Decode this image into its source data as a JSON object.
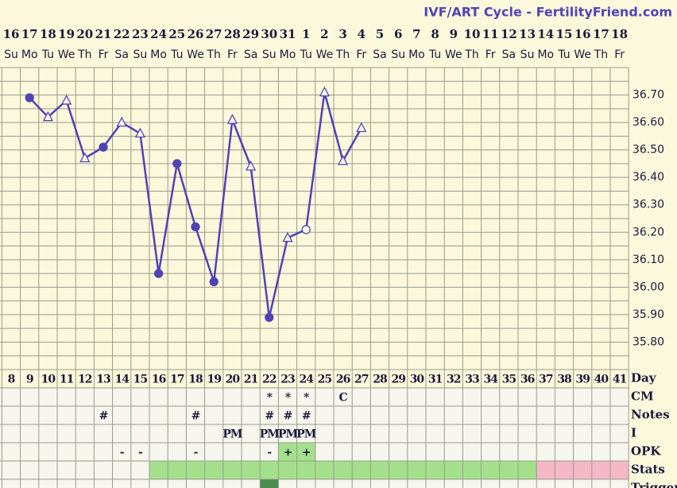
{
  "chart_data": {
    "type": "line",
    "title": "IVF/ART Cycle - FertilityFriend.com",
    "categories": [
      16,
      17,
      18,
      19,
      20,
      21,
      22,
      23,
      24,
      25,
      26,
      27,
      28,
      29,
      30,
      31,
      1,
      2,
      3,
      4,
      5,
      6,
      7,
      8,
      9,
      10,
      11,
      12,
      13,
      14,
      15,
      16,
      17,
      18
    ],
    "weekdays": [
      "Su",
      "Mo",
      "Tu",
      "We",
      "Th",
      "Fr",
      "Sa",
      "Su",
      "Mo",
      "Tu",
      "We",
      "Th",
      "Fr",
      "Sa",
      "Su",
      "Mo",
      "Tu",
      "We",
      "Th",
      "Fr",
      "Sa",
      "Su",
      "Mo",
      "Tu",
      "We",
      "Th",
      "Fr",
      "Sa",
      "Su",
      "Mo",
      "Tu",
      "We",
      "Th",
      "Fr"
    ],
    "series": [
      {
        "name": "Temperature",
        "color": "#4f43b5",
        "values": [
          null,
          36.69,
          36.62,
          36.68,
          36.47,
          36.51,
          36.6,
          36.56,
          36.05,
          36.45,
          36.22,
          36.02,
          36.61,
          36.44,
          35.89,
          36.18,
          36.21,
          36.71,
          36.46,
          36.58,
          null,
          null,
          null,
          null,
          null,
          null,
          null,
          null,
          null,
          null,
          null,
          null,
          null,
          null
        ],
        "markers": [
          null,
          "circle",
          "triangle",
          "triangle",
          "triangle",
          "circle",
          "triangle",
          "triangle",
          "circle",
          "circle",
          "circle",
          "circle",
          "triangle",
          "triangle",
          "circle",
          "triangle",
          "open-circle",
          "triangle",
          "triangle",
          "triangle",
          null,
          null,
          null,
          null,
          null,
          null,
          null,
          null,
          null,
          null,
          null,
          null,
          null,
          null
        ]
      }
    ],
    "ylim": [
      35.7,
      36.8
    ],
    "yticks": [
      {
        "value": 35.8,
        "label": "35.80"
      },
      {
        "value": 35.9,
        "label": "35.90"
      },
      {
        "value": 36.0,
        "label": "36.00"
      },
      {
        "value": 36.1,
        "label": "36.10"
      },
      {
        "value": 36.2,
        "label": "36.20"
      },
      {
        "value": 36.3,
        "label": "36.30"
      },
      {
        "value": 36.4,
        "label": "36.40"
      },
      {
        "value": 36.5,
        "label": "36.50"
      },
      {
        "value": 36.6,
        "label": "36.60"
      },
      {
        "value": 36.7,
        "label": "36.70"
      }
    ],
    "minor_yticks": [
      35.75,
      35.85,
      35.95,
      36.05,
      36.15,
      36.25,
      36.35,
      36.45,
      36.55,
      36.65,
      36.75
    ],
    "grid": true,
    "rows": [
      {
        "label": "Day",
        "cells": [
          8,
          9,
          10,
          11,
          12,
          13,
          14,
          15,
          16,
          17,
          18,
          19,
          20,
          21,
          22,
          23,
          24,
          25,
          26,
          27,
          28,
          29,
          30,
          31,
          32,
          33,
          34,
          35,
          36,
          37,
          38,
          39,
          40,
          41
        ]
      },
      {
        "label": "CM",
        "cells": [
          null,
          null,
          null,
          null,
          null,
          null,
          null,
          null,
          null,
          null,
          null,
          null,
          null,
          null,
          "*",
          "*",
          "*",
          null,
          "C",
          null,
          null,
          null,
          null,
          null,
          null,
          null,
          null,
          null,
          null,
          null,
          null,
          null,
          null,
          null
        ]
      },
      {
        "label": "Notes",
        "cells": [
          null,
          null,
          null,
          null,
          null,
          "#",
          null,
          null,
          null,
          null,
          "#",
          null,
          null,
          null,
          "#",
          "#",
          "#",
          null,
          null,
          null,
          null,
          null,
          null,
          null,
          null,
          null,
          null,
          null,
          null,
          null,
          null,
          null,
          null,
          null
        ]
      },
      {
        "label": "I",
        "cells": [
          null,
          null,
          null,
          null,
          null,
          null,
          null,
          null,
          null,
          null,
          null,
          null,
          "PM",
          null,
          "PM",
          "PM",
          "PM",
          null,
          null,
          null,
          null,
          null,
          null,
          null,
          null,
          null,
          null,
          null,
          null,
          null,
          null,
          null,
          null,
          null
        ]
      },
      {
        "label": "OPK",
        "cells": [
          null,
          null,
          null,
          null,
          null,
          null,
          "-",
          "-",
          null,
          null,
          "-",
          null,
          null,
          null,
          "-",
          "+",
          "+",
          null,
          null,
          null,
          null,
          null,
          null,
          null,
          null,
          null,
          null,
          null,
          null,
          null,
          null,
          null,
          null,
          null
        ],
        "fills": [
          null,
          null,
          null,
          null,
          null,
          null,
          null,
          null,
          null,
          null,
          null,
          null,
          null,
          null,
          null,
          "#a4e08c",
          "#a4e08c",
          null,
          null,
          null,
          null,
          null,
          null,
          null,
          null,
          null,
          null,
          null,
          null,
          null,
          null,
          null,
          null,
          null
        ]
      },
      {
        "label": "Stats",
        "cells": [],
        "fills": [
          null,
          null,
          null,
          null,
          null,
          null,
          null,
          null,
          "#a4e08c",
          "#a4e08c",
          "#a4e08c",
          "#a4e08c",
          "#a4e08c",
          "#a4e08c",
          "#a4e08c",
          "#a4e08c",
          "#a4e08c",
          "#a4e08c",
          "#a4e08c",
          "#a4e08c",
          "#a4e08c",
          "#a4e08c",
          "#a4e08c",
          "#a4e08c",
          "#a4e08c",
          "#a4e08c",
          "#a4e08c",
          "#a4e08c",
          "#a4e08c",
          "#f4b8c8",
          "#f4b8c8",
          "#f4b8c8",
          "#f4b8c8",
          "#f4b8c8"
        ]
      },
      {
        "label": "Trigger",
        "cells": [],
        "fills": [
          null,
          null,
          null,
          null,
          null,
          null,
          null,
          null,
          null,
          null,
          null,
          null,
          null,
          null,
          "#4c8c4c",
          null,
          null,
          null,
          null,
          null,
          null,
          null,
          null,
          null,
          null,
          null,
          null,
          null,
          null,
          null,
          null,
          null,
          null,
          null
        ]
      }
    ]
  }
}
